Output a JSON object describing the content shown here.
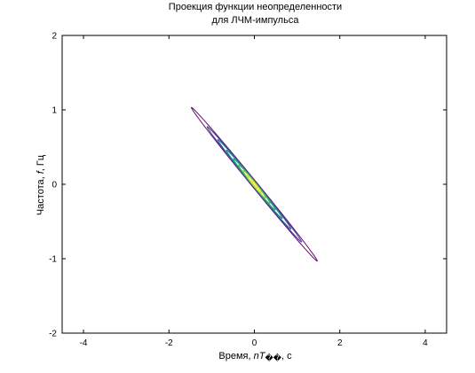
{
  "chart_data": {
    "type": "contour",
    "title_lines": [
      "Проекция функции неопределенности",
      "для ЛЧМ-импульса"
    ],
    "xlabel_prefix": "Время, ",
    "xlabel_italic": "nT",
    "xlabel_garbled": "��",
    "xlabel_suffix": ", c",
    "ylabel_prefix": "Частота, ",
    "ylabel_italic": "f",
    "ylabel_suffix": ", Гц",
    "xlim": [
      -4.5,
      4.5
    ],
    "ylim": [
      -2,
      2
    ],
    "xticks": [
      -4,
      -2,
      0,
      2,
      4
    ],
    "yticks": [
      -2,
      -1,
      0,
      1,
      2
    ],
    "xtick_labels": [
      "-4",
      "-2",
      "0",
      "2",
      "4"
    ],
    "ytick_labels": [
      "-2",
      "-1",
      "0",
      "1",
      "2"
    ],
    "grid": false,
    "ridge_slope_hz_per_s": -0.7,
    "contours": [
      {
        "level": 0.1,
        "half_length": 1.8,
        "half_width": 0.05,
        "color": "#6a0a72"
      },
      {
        "level": 0.2,
        "half_length": 1.35,
        "half_width": 0.042,
        "color": "#3f3f98"
      },
      {
        "level": 0.3,
        "half_length": 1.05,
        "half_width": 0.037,
        "color": "#2a6f98"
      },
      {
        "level": 0.4,
        "half_length": 0.8,
        "half_width": 0.033,
        "color": "#1f8f8c"
      },
      {
        "level": 0.5,
        "half_length": 0.6,
        "half_width": 0.03,
        "color": "#23a37a"
      },
      {
        "level": 0.6,
        "half_length": 0.45,
        "half_width": 0.028,
        "color": "#4cb85a"
      },
      {
        "level": 0.7,
        "half_length": 0.32,
        "half_width": 0.025,
        "color": "#8fcd3f"
      },
      {
        "level": 0.8,
        "half_length": 0.2,
        "half_width": 0.02,
        "color": "#cfdf2c"
      },
      {
        "level": 0.9,
        "half_length": 0.09,
        "half_width": 0.012,
        "color": "#f2e51d"
      }
    ]
  }
}
